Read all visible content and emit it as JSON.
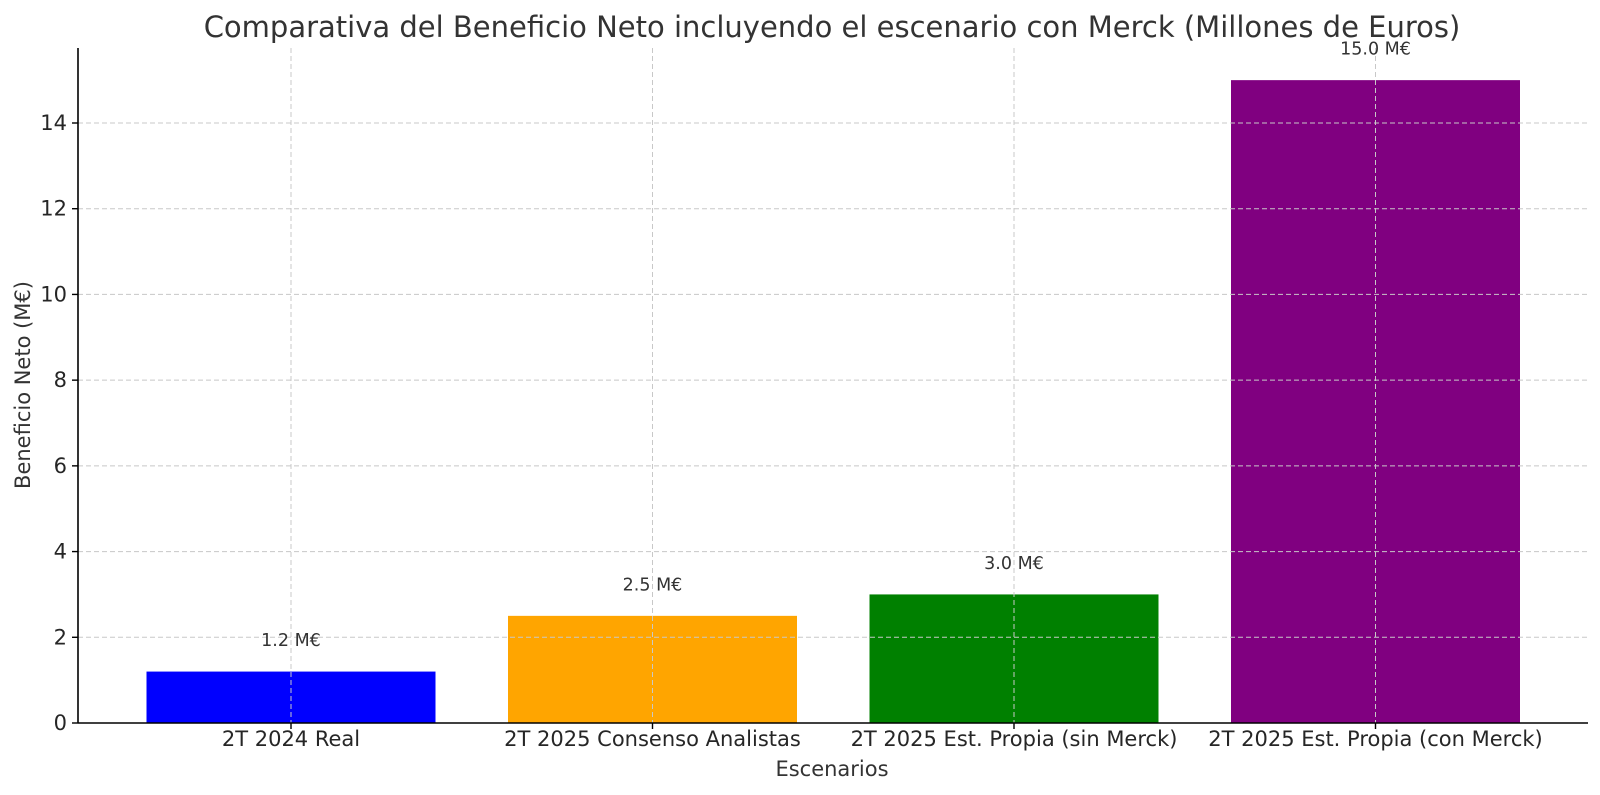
{
  "chart_data": {
    "type": "bar",
    "title": "Comparativa del Beneficio Neto incluyendo el escenario con Merck (Millones de Euros)",
    "xlabel": "Escenarios",
    "ylabel": "Beneficio Neto (M€)",
    "categories": [
      "2T 2024 Real",
      "2T 2025 Consenso Analistas",
      "2T 2025 Est. Propia (sin Merck)",
      "2T 2025 Est. Propia (con Merck)"
    ],
    "values": [
      1.2,
      2.5,
      3.0,
      15.0
    ],
    "data_labels": [
      "1.2 M€",
      "2.5 M€",
      "3.0 M€",
      "15.0 M€"
    ],
    "colors": [
      "#0000ff",
      "#ffa500",
      "#008000",
      "#800080"
    ],
    "ylim": [
      0,
      15.75
    ],
    "yticks": [
      0,
      2,
      4,
      6,
      8,
      10,
      12,
      14
    ],
    "grid": true,
    "legend": "none"
  }
}
